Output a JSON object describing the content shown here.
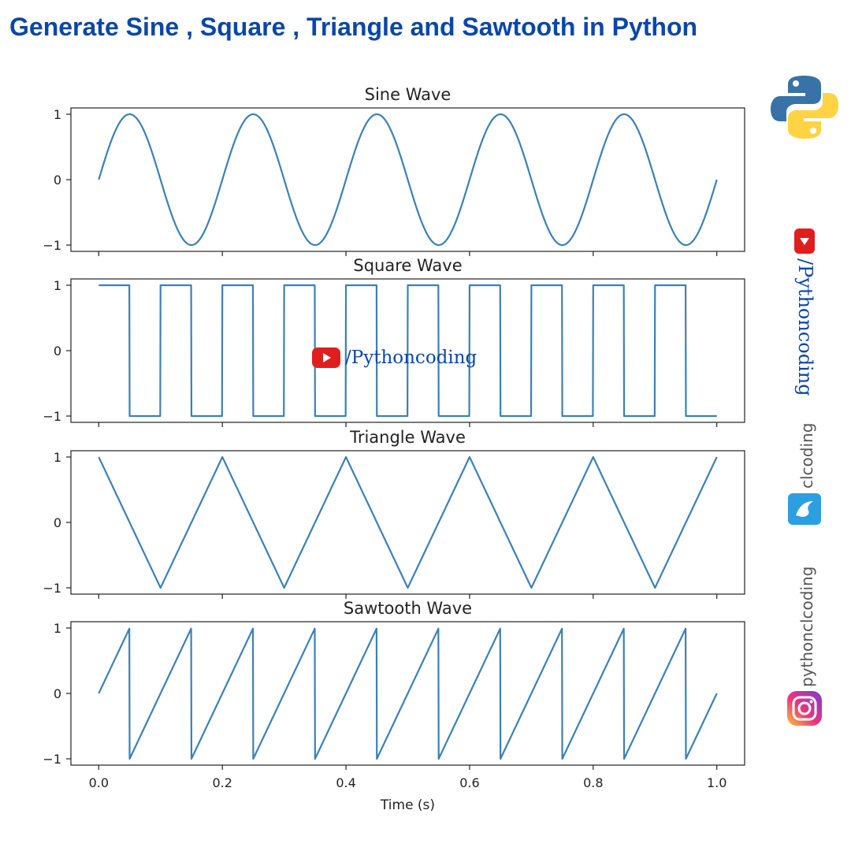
{
  "headline": "Generate Sine , Square , Triangle and Sawtooth in Python",
  "watermark_center": "/Pythoncoding",
  "sidebar": {
    "youtube_handle": "/Pythoncoding",
    "clcoding_handle": "clcoding",
    "instagram_handle": "pythonclcoding"
  },
  "icons": [
    "python-logo-icon",
    "youtube-icon",
    "clcoding-logo-icon",
    "instagram-icon"
  ],
  "colors": {
    "line": "#3c80b5",
    "headline": "#0a47a6",
    "youtube_red": "#e01e1e"
  },
  "chart_data": [
    {
      "type": "line",
      "title": "Sine Wave",
      "wave": "sine",
      "frequency_hz": 5,
      "amplitude": 1,
      "xlim": [
        0,
        1
      ],
      "ylim": [
        -1,
        1
      ],
      "yticks": [
        "1",
        "0",
        "−1"
      ],
      "xticks_shown": false
    },
    {
      "type": "line",
      "title": "Square Wave",
      "wave": "square",
      "frequency_hz": 10,
      "amplitude": 1,
      "xlim": [
        0,
        1
      ],
      "ylim": [
        -1,
        1
      ],
      "yticks": [
        "1",
        "0",
        "−1"
      ],
      "xticks_shown": false
    },
    {
      "type": "line",
      "title": "Triangle Wave",
      "wave": "triangle",
      "frequency_hz": 5,
      "amplitude": 1,
      "xlim": [
        0,
        1
      ],
      "ylim": [
        -1,
        1
      ],
      "yticks": [
        "1",
        "0",
        "−1"
      ],
      "xticks_shown": false
    },
    {
      "type": "line",
      "title": "Sawtooth Wave",
      "wave": "sawtooth",
      "frequency_hz": 10,
      "amplitude": 1,
      "xlim": [
        0,
        1
      ],
      "ylim": [
        -1,
        1
      ],
      "yticks": [
        "1",
        "0",
        "−1"
      ],
      "xticks": [
        "0.0",
        "0.2",
        "0.4",
        "0.6",
        "0.8",
        "1.0"
      ],
      "xlabel": "Time (s)",
      "xticks_shown": true
    }
  ]
}
